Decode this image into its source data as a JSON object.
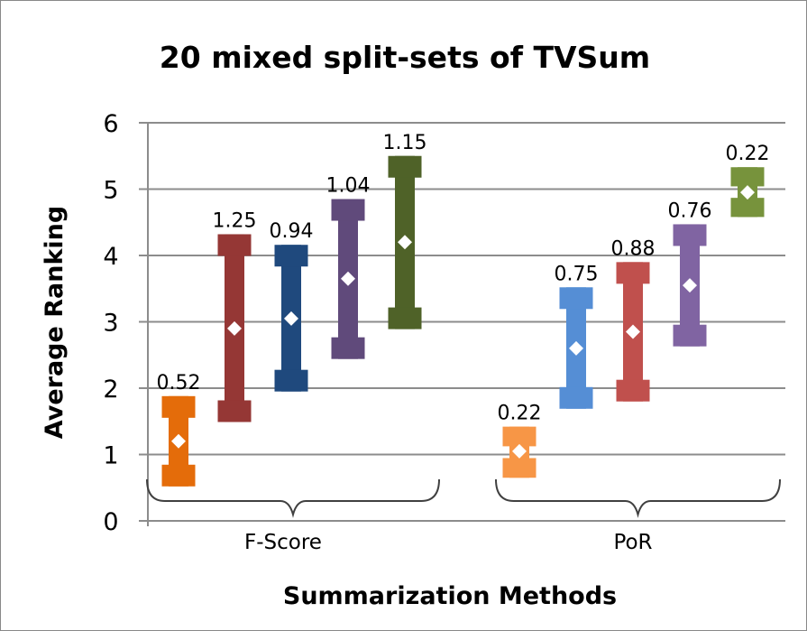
{
  "chart_data": {
    "type": "errorbar",
    "title": "20 mixed split-sets of TVSum",
    "xlabel": "Summarization Methods",
    "ylabel": "Average Ranking",
    "ylim": [
      0,
      6
    ],
    "yticks": [
      0,
      1,
      2,
      3,
      4,
      5,
      6
    ],
    "grid": true,
    "groups": [
      {
        "name": "F-Score",
        "series": [
          {
            "color": "#E46C0A",
            "mean": 1.2,
            "low": 0.52,
            "high": 1.88,
            "label": "0.52"
          },
          {
            "color": "#953735",
            "mean": 2.9,
            "low": 1.49,
            "high": 4.32,
            "label": "1.25"
          },
          {
            "color": "#1F497D",
            "mean": 3.05,
            "low": 1.95,
            "high": 4.16,
            "label": "0.94"
          },
          {
            "color": "#604A7B",
            "mean": 3.65,
            "low": 2.44,
            "high": 4.85,
            "label": "1.04"
          },
          {
            "color": "#4F6228",
            "mean": 4.2,
            "low": 2.89,
            "high": 5.5,
            "label": "1.15"
          }
        ]
      },
      {
        "name": "PoR",
        "series": [
          {
            "color": "#F79646",
            "mean": 1.05,
            "low": 0.65,
            "high": 1.42,
            "label": "0.22"
          },
          {
            "color": "#558ED5",
            "mean": 2.6,
            "low": 1.69,
            "high": 3.52,
            "label": "0.75"
          },
          {
            "color": "#C0504D",
            "mean": 2.85,
            "low": 1.8,
            "high": 3.9,
            "label": "0.88"
          },
          {
            "color": "#8064A2",
            "mean": 3.55,
            "low": 2.63,
            "high": 4.47,
            "label": "0.76"
          },
          {
            "color": "#77933C",
            "mean": 4.95,
            "low": 4.58,
            "high": 5.33,
            "label": "0.22"
          }
        ]
      }
    ]
  }
}
